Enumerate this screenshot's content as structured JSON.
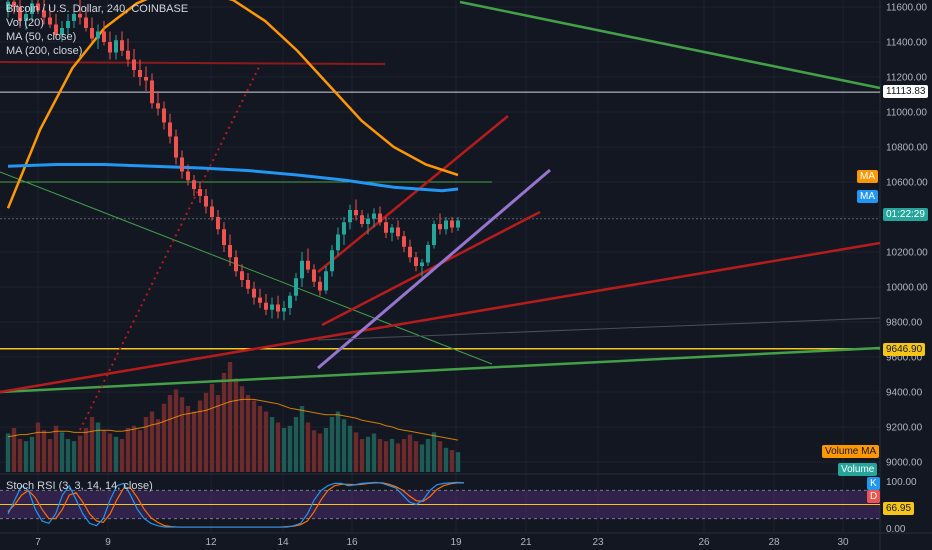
{
  "legend": {
    "symbol": "Bitcoin / U.S. Dollar, 240, COINBASE",
    "vol": "Vol (20)",
    "ma50": "MA (50, close)",
    "ma200": "MA (200, close)"
  },
  "stoch_label": "Stoch RSI (3, 3, 14, 14, close)",
  "badges": {
    "ma_orange": "MA",
    "ma_blue": "MA",
    "countdown": "01:22:29",
    "price_white": "11113.83",
    "price_yellow": "9646.90",
    "volume_ma": "Volume MA",
    "volume": "Volume",
    "k": "K",
    "d": "D",
    "stoch_value": "66.95"
  },
  "colors": {
    "background": "#131722",
    "up": "#26a69a",
    "down": "#ef5350",
    "ma50": "#ff9800",
    "ma200": "#2196f3",
    "trend_green": "#43a047",
    "trend_red": "#b71c1c",
    "trend_purple": "#9575cd",
    "level_yellow": "#f5c518",
    "stoch_band": "#4a2c6e"
  },
  "chart_data": {
    "type": "candlestick",
    "title": "Bitcoin / U.S. Dollar, 240, COINBASE",
    "y_ticks": [
      11600,
      11400,
      11200,
      11000,
      10800,
      10600,
      10400,
      10200,
      10000,
      9800,
      9600,
      9400,
      9200,
      9000
    ],
    "x_ticks": [
      "7",
      "9",
      "12",
      "14",
      "16",
      "19",
      "21",
      "23",
      "26",
      "28",
      "30"
    ],
    "ylim": [
      8940,
      11700
    ],
    "stoch_ticks": [
      "100.00",
      "0.00"
    ],
    "price_levels": [
      11113.83,
      9646.9
    ],
    "ohlc": [
      [
        11580,
        11660,
        11540,
        11630
      ],
      [
        11630,
        11680,
        11560,
        11600
      ],
      [
        11600,
        11640,
        11480,
        11520
      ],
      [
        11520,
        11600,
        11470,
        11560
      ],
      [
        11560,
        11650,
        11520,
        11620
      ],
      [
        11620,
        11700,
        11560,
        11580
      ],
      [
        11580,
        11640,
        11500,
        11540
      ],
      [
        11540,
        11600,
        11480,
        11500
      ],
      [
        11500,
        11560,
        11420,
        11440
      ],
      [
        11440,
        11520,
        11400,
        11480
      ],
      [
        11480,
        11560,
        11440,
        11520
      ],
      [
        11520,
        11600,
        11480,
        11560
      ],
      [
        11560,
        11640,
        11500,
        11540
      ],
      [
        11540,
        11600,
        11460,
        11480
      ],
      [
        11480,
        11540,
        11400,
        11420
      ],
      [
        11420,
        11500,
        11360,
        11460
      ],
      [
        11460,
        11520,
        11380,
        11400
      ],
      [
        11400,
        11460,
        11300,
        11340
      ],
      [
        11340,
        11440,
        11300,
        11410
      ],
      [
        11410,
        11460,
        11320,
        11350
      ],
      [
        11350,
        11420,
        11260,
        11300
      ],
      [
        11300,
        11360,
        11200,
        11240
      ],
      [
        11240,
        11300,
        11150,
        11200
      ],
      [
        11200,
        11260,
        11120,
        11180
      ],
      [
        11180,
        11220,
        11020,
        11050
      ],
      [
        11050,
        11120,
        10980,
        11020
      ],
      [
        11020,
        11060,
        10900,
        10940
      ],
      [
        10940,
        10990,
        10820,
        10860
      ],
      [
        10860,
        10900,
        10700,
        10740
      ],
      [
        10740,
        10780,
        10620,
        10660
      ],
      [
        10660,
        10700,
        10580,
        10610
      ],
      [
        10610,
        10640,
        10520,
        10560
      ],
      [
        10560,
        10600,
        10480,
        10520
      ],
      [
        10520,
        10560,
        10420,
        10460
      ],
      [
        10460,
        10500,
        10380,
        10400
      ],
      [
        10400,
        10440,
        10300,
        10330
      ],
      [
        10330,
        10370,
        10200,
        10240
      ],
      [
        10240,
        10300,
        10120,
        10170
      ],
      [
        10170,
        10210,
        10060,
        10090
      ],
      [
        10090,
        10130,
        10000,
        10040
      ],
      [
        10040,
        10080,
        9960,
        9990
      ],
      [
        9990,
        10030,
        9900,
        9940
      ],
      [
        9940,
        9990,
        9880,
        9910
      ],
      [
        9910,
        9960,
        9840,
        9870
      ],
      [
        9870,
        9940,
        9820,
        9900
      ],
      [
        9900,
        9950,
        9820,
        9860
      ],
      [
        9860,
        9920,
        9810,
        9880
      ],
      [
        9880,
        9970,
        9840,
        9950
      ],
      [
        9950,
        10080,
        9920,
        10050
      ],
      [
        10050,
        10200,
        10000,
        10150
      ],
      [
        10150,
        10220,
        10080,
        10100
      ],
      [
        10100,
        10130,
        10000,
        10030
      ],
      [
        10030,
        10060,
        9950,
        9980
      ],
      [
        9980,
        10120,
        9960,
        10090
      ],
      [
        10090,
        10240,
        10060,
        10210
      ],
      [
        10210,
        10340,
        10180,
        10300
      ],
      [
        10300,
        10400,
        10240,
        10370
      ],
      [
        10370,
        10470,
        10330,
        10440
      ],
      [
        10440,
        10500,
        10380,
        10410
      ],
      [
        10410,
        10440,
        10340,
        10360
      ],
      [
        10360,
        10420,
        10300,
        10390
      ],
      [
        10390,
        10450,
        10340,
        10420
      ],
      [
        10420,
        10460,
        10350,
        10370
      ],
      [
        10370,
        10400,
        10280,
        10310
      ],
      [
        10310,
        10360,
        10260,
        10340
      ],
      [
        10340,
        10380,
        10270,
        10290
      ],
      [
        10290,
        10320,
        10200,
        10230
      ],
      [
        10230,
        10270,
        10140,
        10170
      ],
      [
        10170,
        10200,
        10090,
        10120
      ],
      [
        10120,
        10160,
        10060,
        10140
      ],
      [
        10140,
        10260,
        10120,
        10240
      ],
      [
        10240,
        10380,
        10220,
        10360
      ],
      [
        10360,
        10420,
        10300,
        10330
      ],
      [
        10330,
        10400,
        10300,
        10380
      ],
      [
        10380,
        10400,
        10310,
        10340
      ],
      [
        10340,
        10400,
        10320,
        10380
      ]
    ],
    "volume": [
      0.35,
      0.4,
      0.3,
      0.28,
      0.32,
      0.45,
      0.38,
      0.3,
      0.42,
      0.36,
      0.3,
      0.28,
      0.33,
      0.4,
      0.5,
      0.45,
      0.38,
      0.35,
      0.32,
      0.3,
      0.4,
      0.42,
      0.38,
      0.5,
      0.55,
      0.48,
      0.62,
      0.7,
      0.75,
      0.68,
      0.6,
      0.55,
      0.65,
      0.72,
      0.8,
      0.7,
      0.9,
      1.0,
      0.85,
      0.78,
      0.7,
      0.65,
      0.6,
      0.55,
      0.5,
      0.45,
      0.4,
      0.42,
      0.5,
      0.6,
      0.45,
      0.38,
      0.35,
      0.4,
      0.5,
      0.55,
      0.48,
      0.42,
      0.36,
      0.3,
      0.32,
      0.35,
      0.3,
      0.28,
      0.3,
      0.26,
      0.3,
      0.34,
      0.28,
      0.25,
      0.3,
      0.36,
      0.28,
      0.22,
      0.2,
      0.18
    ],
    "volume_ma": [
      0.32,
      0.33,
      0.34,
      0.34,
      0.35,
      0.36,
      0.36,
      0.36,
      0.37,
      0.37,
      0.37,
      0.36,
      0.36,
      0.36,
      0.37,
      0.38,
      0.38,
      0.38,
      0.37,
      0.37,
      0.38,
      0.39,
      0.4,
      0.41,
      0.43,
      0.44,
      0.46,
      0.48,
      0.5,
      0.52,
      0.53,
      0.54,
      0.55,
      0.56,
      0.58,
      0.6,
      0.62,
      0.64,
      0.65,
      0.66,
      0.66,
      0.66,
      0.65,
      0.64,
      0.63,
      0.62,
      0.6,
      0.58,
      0.57,
      0.56,
      0.55,
      0.54,
      0.53,
      0.52,
      0.52,
      0.52,
      0.51,
      0.5,
      0.49,
      0.47,
      0.46,
      0.45,
      0.44,
      0.42,
      0.41,
      0.39,
      0.38,
      0.37,
      0.36,
      0.35,
      0.34,
      0.33,
      0.32,
      0.31,
      0.3,
      0.29
    ],
    "ma50": [
      [
        0,
        10450
      ],
      [
        10,
        10900
      ],
      [
        20,
        11250
      ],
      [
        30,
        11480
      ],
      [
        40,
        11620
      ],
      [
        50,
        11700
      ],
      [
        60,
        11690
      ],
      [
        70,
        11640
      ],
      [
        80,
        11520
      ],
      [
        90,
        11350
      ],
      [
        100,
        11150
      ],
      [
        110,
        10950
      ],
      [
        120,
        10800
      ],
      [
        130,
        10700
      ],
      [
        140,
        10640
      ]
    ],
    "ma200": [
      [
        0,
        10690
      ],
      [
        15,
        10700
      ],
      [
        30,
        10700
      ],
      [
        45,
        10690
      ],
      [
        60,
        10680
      ],
      [
        75,
        10665
      ],
      [
        90,
        10640
      ],
      [
        105,
        10610
      ],
      [
        120,
        10570
      ],
      [
        135,
        10550
      ],
      [
        140,
        10560
      ]
    ],
    "stoch_k": [
      0.3,
      0.6,
      0.9,
      0.8,
      0.4,
      0.15,
      0.1,
      0.3,
      0.7,
      0.9,
      0.6,
      0.3,
      0.1,
      0.05,
      0.2,
      0.6,
      0.9,
      0.95,
      0.7,
      0.4,
      0.2,
      0.1,
      0.05,
      0.02,
      0.02,
      0.02,
      0.02,
      0.02,
      0.02,
      0.02,
      0.02,
      0.02,
      0.02,
      0.02,
      0.02,
      0.02,
      0.02,
      0.02,
      0.02,
      0.02,
      0.02,
      0.02,
      0.05,
      0.1,
      0.3,
      0.6,
      0.8,
      0.9,
      0.95,
      0.95,
      0.9,
      0.92,
      0.95,
      0.96,
      0.97,
      0.95,
      0.9,
      0.85,
      0.7,
      0.55,
      0.5,
      0.6,
      0.8,
      0.92,
      0.95,
      0.96,
      0.97,
      0.96
    ],
    "stoch_d": [
      0.35,
      0.5,
      0.7,
      0.8,
      0.65,
      0.4,
      0.2,
      0.2,
      0.4,
      0.7,
      0.75,
      0.55,
      0.3,
      0.15,
      0.12,
      0.3,
      0.6,
      0.85,
      0.85,
      0.65,
      0.4,
      0.22,
      0.12,
      0.05,
      0.03,
      0.02,
      0.02,
      0.02,
      0.02,
      0.02,
      0.02,
      0.02,
      0.02,
      0.02,
      0.02,
      0.02,
      0.02,
      0.02,
      0.02,
      0.02,
      0.02,
      0.03,
      0.04,
      0.07,
      0.15,
      0.35,
      0.6,
      0.8,
      0.9,
      0.93,
      0.93,
      0.92,
      0.93,
      0.95,
      0.96,
      0.96,
      0.93,
      0.88,
      0.8,
      0.68,
      0.58,
      0.57,
      0.67,
      0.82,
      0.9,
      0.94,
      0.96,
      0.96
    ]
  }
}
